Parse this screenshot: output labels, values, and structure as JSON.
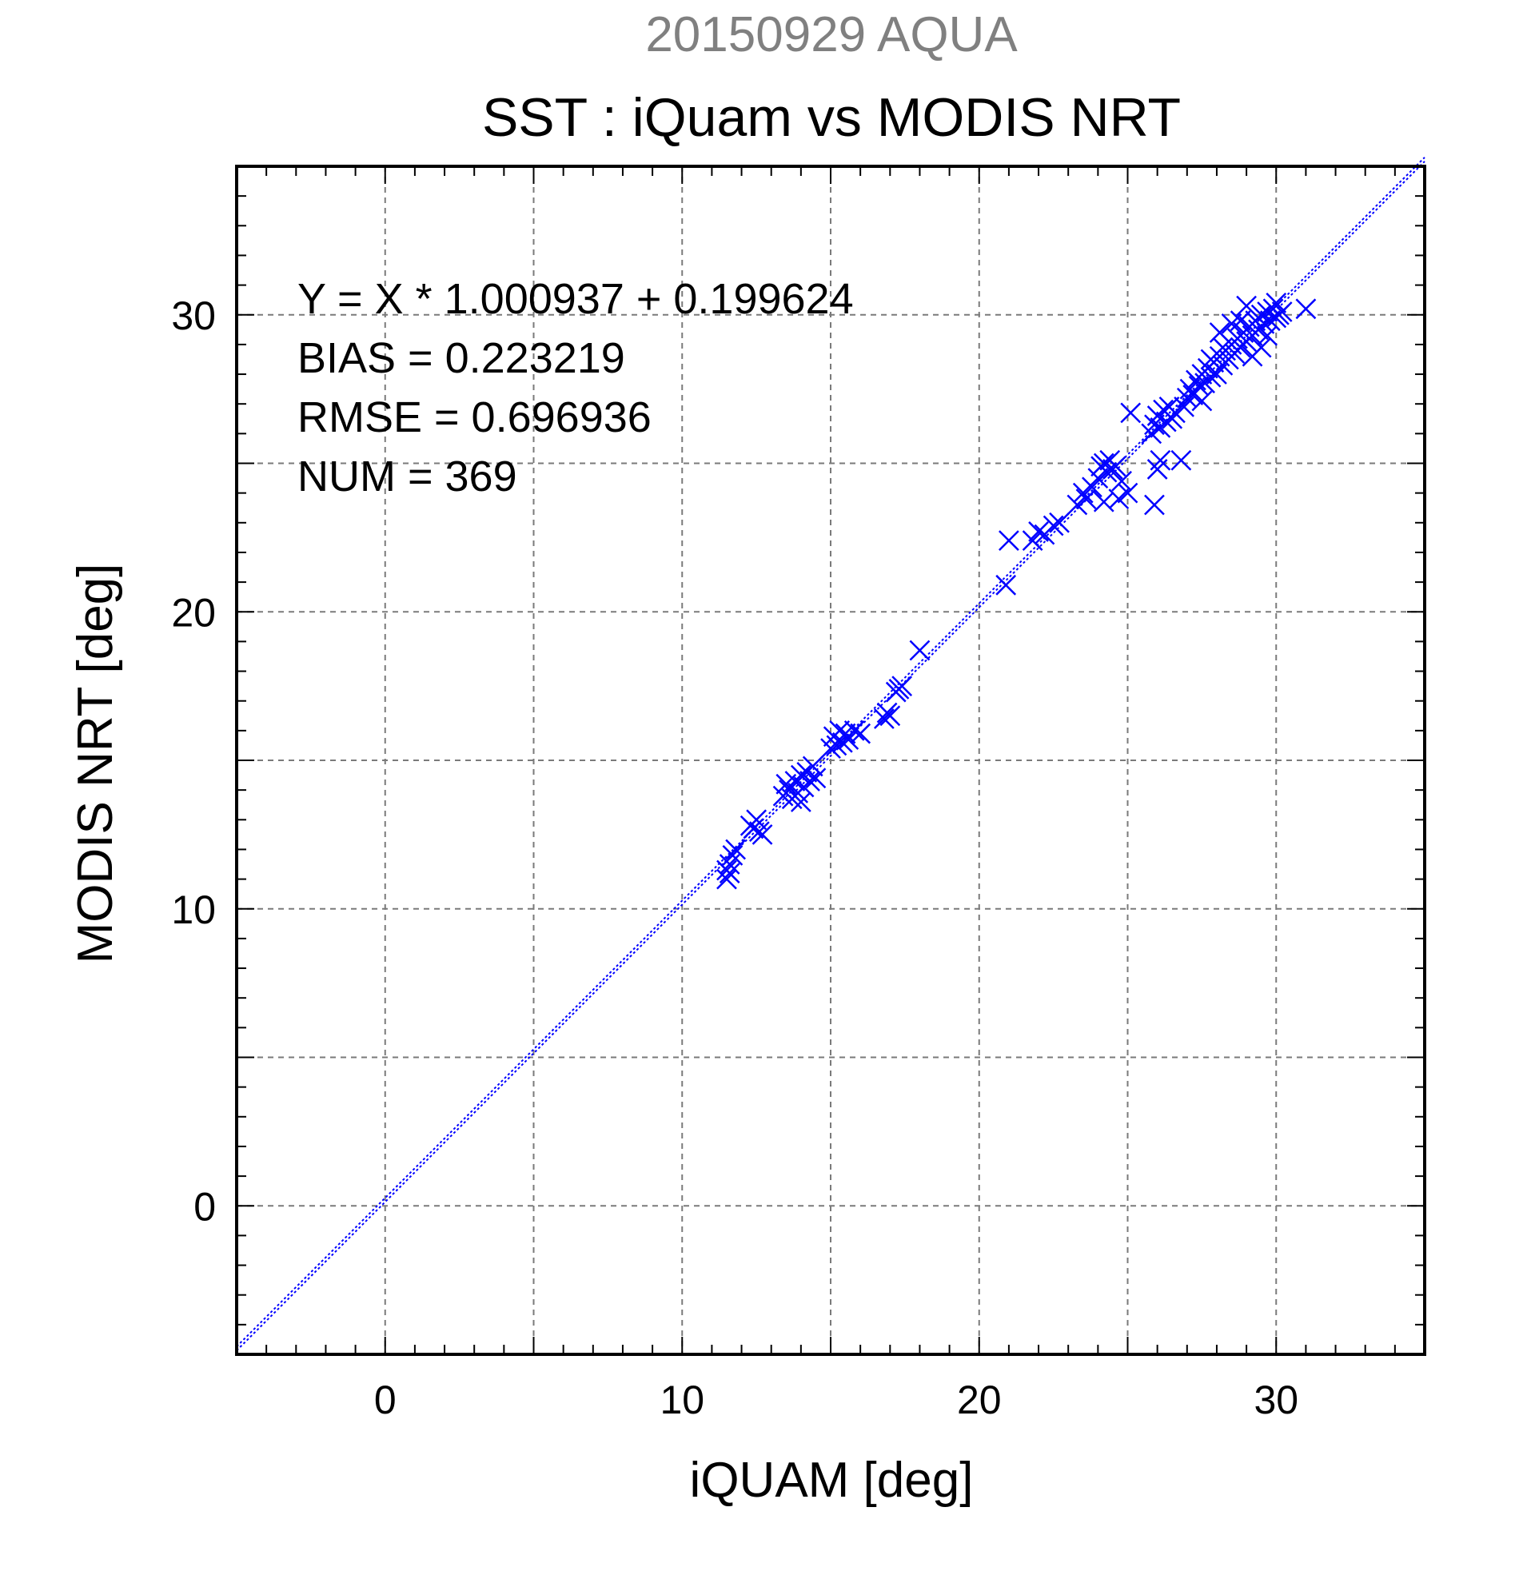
{
  "chart_data": {
    "type": "scatter",
    "supertitle": "20150929 AQUA",
    "title": "SST : iQuam vs MODIS NRT",
    "xlabel": "iQUAM [deg]",
    "ylabel": "MODIS NRT [deg]",
    "xlim": [
      -5,
      35
    ],
    "ylim": [
      -5,
      35
    ],
    "xticks": [
      0,
      10,
      20,
      30
    ],
    "yticks": [
      0,
      10,
      20,
      30
    ],
    "grid": true,
    "marker": "x",
    "marker_color": "#0000ff",
    "stats": [
      "Y = X * 1.000937 + 0.199624",
      "BIAS = 0.223219",
      "RMSE = 0.696936",
      "NUM = 369"
    ],
    "fit_line": {
      "slope": 1.000937,
      "intercept": 0.199624,
      "color": "#0000ff"
    },
    "points": [
      [
        11.5,
        11.0
      ],
      [
        11.5,
        11.3
      ],
      [
        11.6,
        11.5
      ],
      [
        11.7,
        11.8
      ],
      [
        11.8,
        12.0
      ],
      [
        11.6,
        11.2
      ],
      [
        12.3,
        12.8
      ],
      [
        12.4,
        12.7
      ],
      [
        12.5,
        13.0
      ],
      [
        12.6,
        12.6
      ],
      [
        12.7,
        12.5
      ],
      [
        13.4,
        13.8
      ],
      [
        13.5,
        14.2
      ],
      [
        13.6,
        14.0
      ],
      [
        13.7,
        13.7
      ],
      [
        13.8,
        14.3
      ],
      [
        13.9,
        13.9
      ],
      [
        14.0,
        14.5
      ],
      [
        14.1,
        14.1
      ],
      [
        14.2,
        14.6
      ],
      [
        14.3,
        14.3
      ],
      [
        14.4,
        14.8
      ],
      [
        14.5,
        14.4
      ],
      [
        14.0,
        13.6
      ],
      [
        15.0,
        15.4
      ],
      [
        15.1,
        15.8
      ],
      [
        15.2,
        15.5
      ],
      [
        15.3,
        16.0
      ],
      [
        15.4,
        15.6
      ],
      [
        15.5,
        15.9
      ],
      [
        15.6,
        15.7
      ],
      [
        15.8,
        16.0
      ],
      [
        16.0,
        15.9
      ],
      [
        16.8,
        16.4
      ],
      [
        16.9,
        16.6
      ],
      [
        17.0,
        16.5
      ],
      [
        17.2,
        17.3
      ],
      [
        17.4,
        17.5
      ],
      [
        17.3,
        17.4
      ],
      [
        18.0,
        18.7
      ],
      [
        20.9,
        20.9
      ],
      [
        21.0,
        22.4
      ],
      [
        21.8,
        22.4
      ],
      [
        22.0,
        22.7
      ],
      [
        22.2,
        22.6
      ],
      [
        22.5,
        22.9
      ],
      [
        22.7,
        23.0
      ],
      [
        23.3,
        23.6
      ],
      [
        23.5,
        24.0
      ],
      [
        23.6,
        23.8
      ],
      [
        23.8,
        24.2
      ],
      [
        24.0,
        24.5
      ],
      [
        24.1,
        24.9
      ],
      [
        24.2,
        25.0
      ],
      [
        24.3,
        24.7
      ],
      [
        24.4,
        25.1
      ],
      [
        24.5,
        24.8
      ],
      [
        24.6,
        24.9
      ],
      [
        24.2,
        23.7
      ],
      [
        24.7,
        23.8
      ],
      [
        25.0,
        24.0
      ],
      [
        24.8,
        24.4
      ],
      [
        25.1,
        26.7
      ],
      [
        25.8,
        26.0
      ],
      [
        25.9,
        26.3
      ],
      [
        26.0,
        26.6
      ],
      [
        26.1,
        26.2
      ],
      [
        26.2,
        26.8
      ],
      [
        26.3,
        26.4
      ],
      [
        26.4,
        26.9
      ],
      [
        26.5,
        26.5
      ],
      [
        26.6,
        26.7
      ],
      [
        26.0,
        24.8
      ],
      [
        26.1,
        25.1
      ],
      [
        25.9,
        23.6
      ],
      [
        26.8,
        25.1
      ],
      [
        26.9,
        26.9
      ],
      [
        27.0,
        27.2
      ],
      [
        27.1,
        27.5
      ],
      [
        27.2,
        27.3
      ],
      [
        27.3,
        27.8
      ],
      [
        27.4,
        27.6
      ],
      [
        27.5,
        28.0
      ],
      [
        27.6,
        27.7
      ],
      [
        27.7,
        28.2
      ],
      [
        27.8,
        27.9
      ],
      [
        27.9,
        28.4
      ],
      [
        28.0,
        28.0
      ],
      [
        28.1,
        28.6
      ],
      [
        28.2,
        28.3
      ],
      [
        28.3,
        28.8
      ],
      [
        28.4,
        28.5
      ],
      [
        28.5,
        29.0
      ],
      [
        28.6,
        28.7
      ],
      [
        28.7,
        29.2
      ],
      [
        28.8,
        28.9
      ],
      [
        28.9,
        29.4
      ],
      [
        29.0,
        29.1
      ],
      [
        29.1,
        29.6
      ],
      [
        29.2,
        29.3
      ],
      [
        29.3,
        29.8
      ],
      [
        29.4,
        29.5
      ],
      [
        29.5,
        30.0
      ],
      [
        29.6,
        29.7
      ],
      [
        29.7,
        30.1
      ],
      [
        29.8,
        29.8
      ],
      [
        29.9,
        30.2
      ],
      [
        30.0,
        29.9
      ],
      [
        30.1,
        30.0
      ],
      [
        30.2,
        30.1
      ],
      [
        29.0,
        30.3
      ],
      [
        28.5,
        29.7
      ],
      [
        28.2,
        28.9
      ],
      [
        27.5,
        27.1
      ],
      [
        29.2,
        28.6
      ],
      [
        29.5,
        28.9
      ],
      [
        28.8,
        29.8
      ],
      [
        31.0,
        30.2
      ],
      [
        28.1,
        29.4
      ],
      [
        27.8,
        28.5
      ],
      [
        29.7,
        29.3
      ],
      [
        30.0,
        30.4
      ]
    ]
  }
}
